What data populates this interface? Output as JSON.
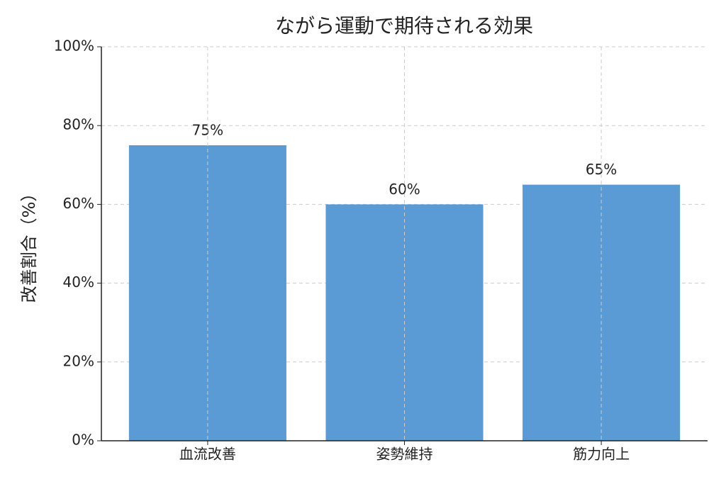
{
  "chart_data": {
    "type": "bar",
    "title": "ながら運動で期待される効果",
    "y_label": "改善割合（%）",
    "categories": [
      "血流改善",
      "姿勢維持",
      "筋力向上"
    ],
    "values": [
      75,
      60,
      65
    ],
    "value_labels": [
      "75%",
      "60%",
      "65%"
    ],
    "color": "#5b9bd5",
    "ylim": [
      0,
      100
    ],
    "yticks": [
      {
        "value": 0,
        "label": "0%"
      },
      {
        "value": 20,
        "label": "20%"
      },
      {
        "value": 40,
        "label": "40%"
      },
      {
        "value": 60,
        "label": "60%"
      },
      {
        "value": 80,
        "label": "80%"
      },
      {
        "value": 100,
        "label": "100%"
      }
    ],
    "grid": true
  }
}
